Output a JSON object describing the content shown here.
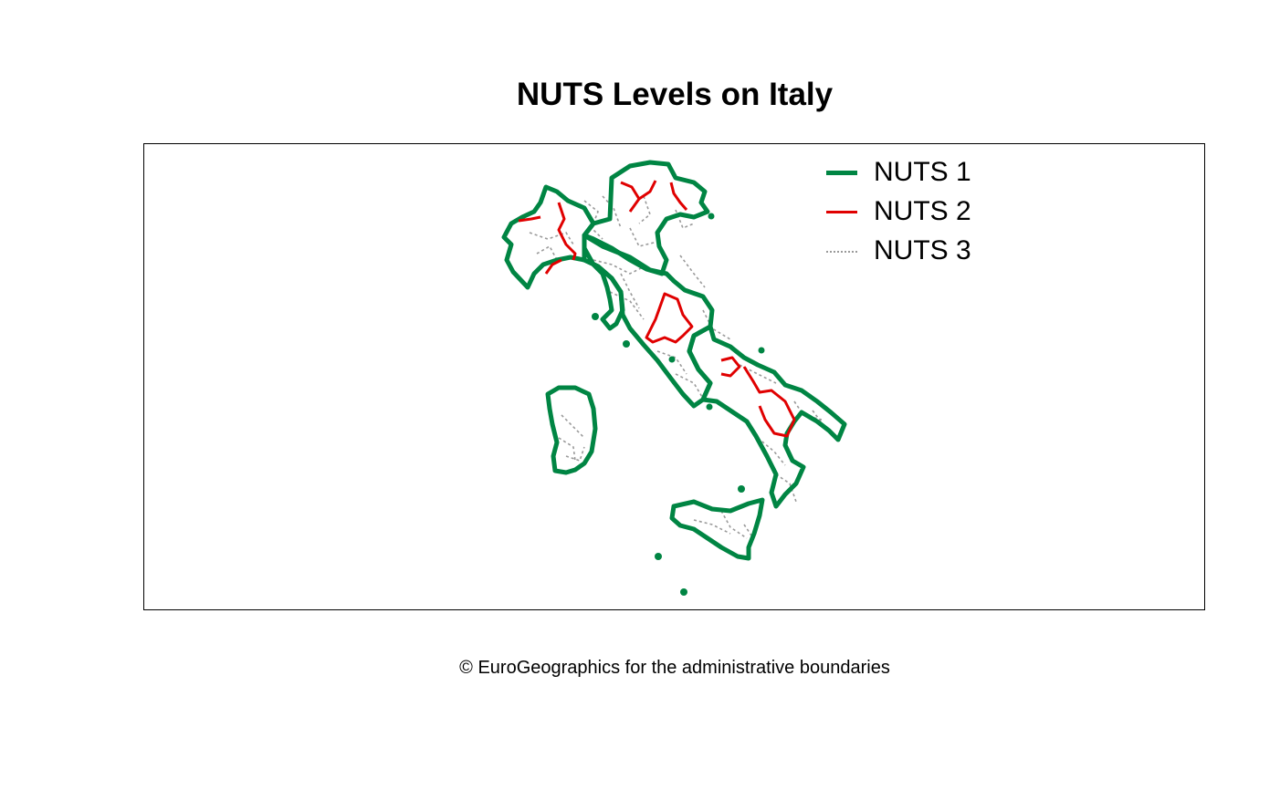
{
  "title": "NUTS Levels on Italy",
  "caption": "© EuroGeographics for the administrative boundaries",
  "legend": {
    "items": [
      {
        "label": "NUTS 1",
        "color": "#008543",
        "style": "solid-thick"
      },
      {
        "label": "NUTS 2",
        "color": "#e00000",
        "style": "solid"
      },
      {
        "label": "NUTS 3",
        "color": "#9a9a9a",
        "style": "dotted"
      }
    ]
  },
  "map": {
    "country": "Italy"
  }
}
